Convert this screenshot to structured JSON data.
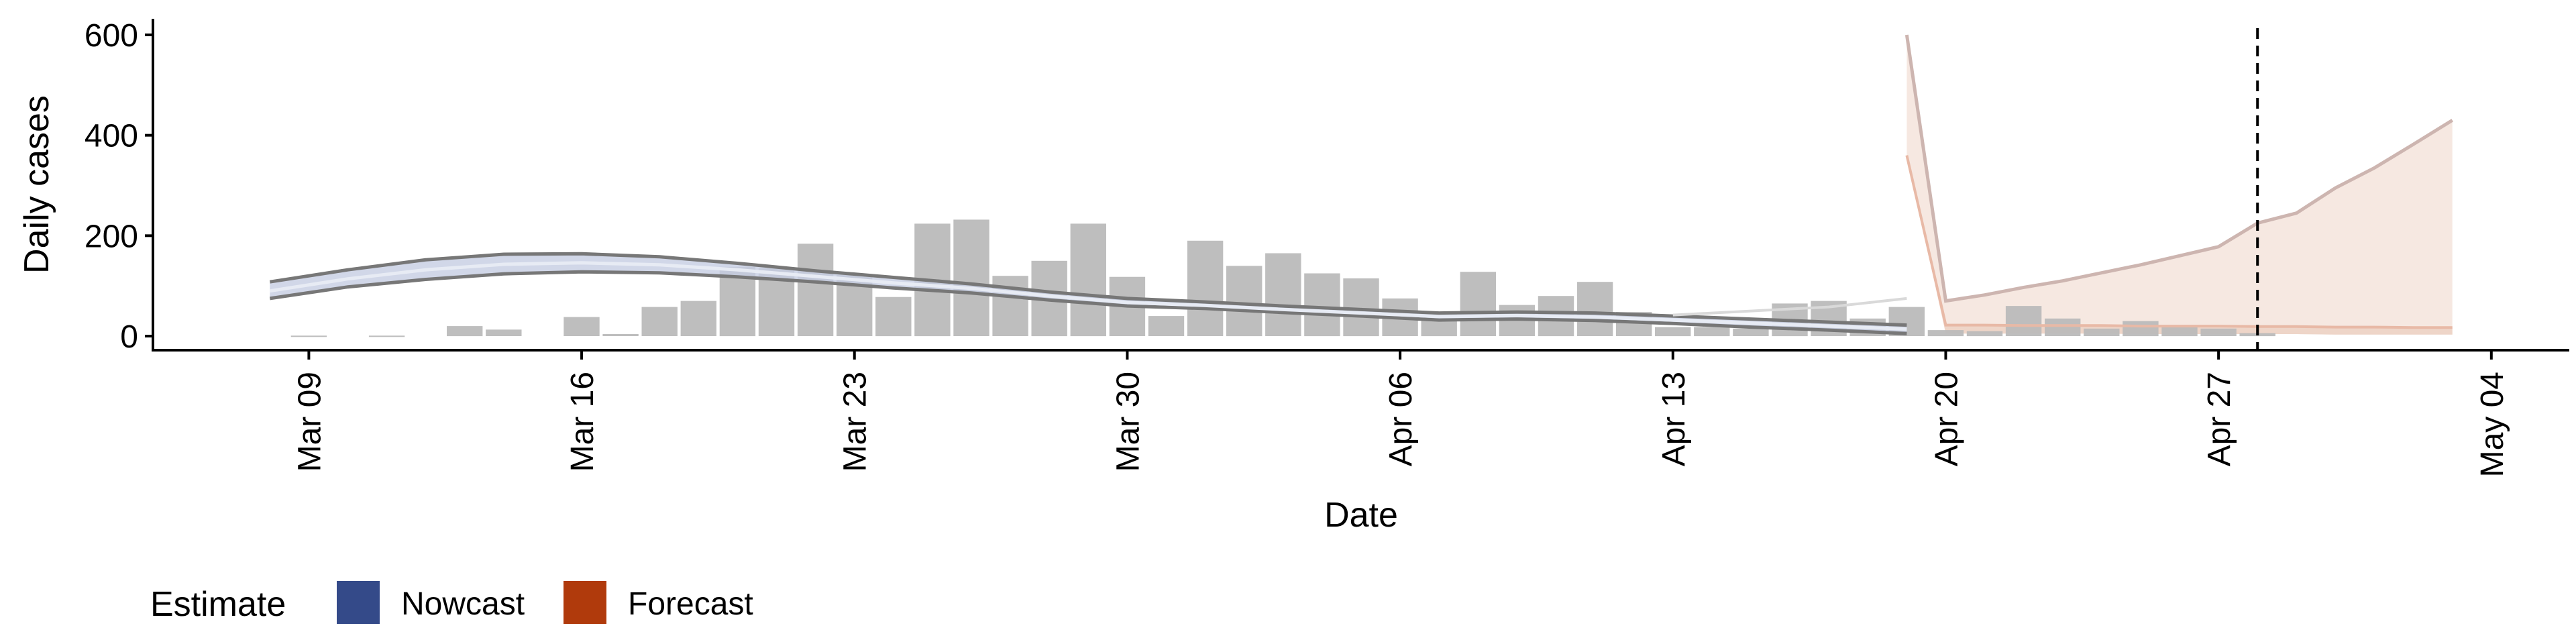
{
  "chart_data": {
    "type": "bar",
    "title": "",
    "xlabel": "Date",
    "ylabel": "Daily cases",
    "ylim": [
      -28,
      632
    ],
    "yticks": [
      0,
      200,
      400,
      600
    ],
    "x_tick_labels": [
      "Mar 09",
      "Mar 16",
      "Mar 23",
      "Mar 30",
      "Apr 06",
      "Apr 13",
      "Apr 20",
      "Apr 27",
      "May 04"
    ],
    "x_tick_dates": [
      "2020-03-09",
      "2020-03-16",
      "2020-03-23",
      "2020-03-30",
      "2020-04-06",
      "2020-04-13",
      "2020-04-20",
      "2020-04-27",
      "2020-05-04"
    ],
    "x_range": [
      "2020-03-05",
      "2020-05-06"
    ],
    "reference_date": "2020-04-28",
    "grid": false,
    "legend_position": "bottom-left",
    "legend": {
      "title": "Estimate",
      "items": [
        {
          "label": "Nowcast",
          "color": "#344a89"
        },
        {
          "label": "Forecast",
          "color": "#b03a0c"
        }
      ]
    },
    "colors": {
      "bars": "#bbbbbb",
      "nowcast_band": "#c5cde2",
      "nowcast_line": "#777777",
      "forecast_band": "#f5e4dc",
      "forecast_line": "#cdb5b0",
      "faint_line": "#d9d9d9"
    },
    "bars": {
      "dates": [
        "2020-03-09",
        "2020-03-11",
        "2020-03-13",
        "2020-03-14",
        "2020-03-16",
        "2020-03-17",
        "2020-03-18",
        "2020-03-19",
        "2020-03-20",
        "2020-03-21",
        "2020-03-22",
        "2020-03-23",
        "2020-03-24",
        "2020-03-25",
        "2020-03-26",
        "2020-03-27",
        "2020-03-28",
        "2020-03-29",
        "2020-03-30",
        "2020-03-31",
        "2020-04-01",
        "2020-04-02",
        "2020-04-03",
        "2020-04-04",
        "2020-04-05",
        "2020-04-06",
        "2020-04-07",
        "2020-04-08",
        "2020-04-09",
        "2020-04-10",
        "2020-04-11",
        "2020-04-12",
        "2020-04-13",
        "2020-04-14",
        "2020-04-15",
        "2020-04-16",
        "2020-04-17",
        "2020-04-18",
        "2020-04-19",
        "2020-04-20",
        "2020-04-21",
        "2020-04-22",
        "2020-04-23",
        "2020-04-24",
        "2020-04-25",
        "2020-04-26",
        "2020-04-27",
        "2020-04-28"
      ],
      "values": [
        1,
        1,
        20,
        13,
        38,
        4,
        58,
        70,
        138,
        135,
        184,
        122,
        78,
        224,
        232,
        120,
        150,
        224,
        118,
        40,
        190,
        140,
        165,
        125,
        115,
        75,
        45,
        128,
        62,
        80,
        108,
        48,
        18,
        18,
        15,
        65,
        70,
        35,
        58,
        12,
        10,
        60,
        35,
        15,
        30,
        18,
        15,
        6
      ]
    },
    "nowcast": {
      "dates": [
        "2020-03-08",
        "2020-03-10",
        "2020-03-12",
        "2020-03-14",
        "2020-03-16",
        "2020-03-18",
        "2020-03-20",
        "2020-03-22",
        "2020-03-24",
        "2020-03-26",
        "2020-03-28",
        "2020-03-30",
        "2020-04-01",
        "2020-04-03",
        "2020-04-05",
        "2020-04-07",
        "2020-04-09",
        "2020-04-11",
        "2020-04-13",
        "2020-04-15",
        "2020-04-17",
        "2020-04-19"
      ],
      "upper": [
        108,
        132,
        152,
        163,
        164,
        158,
        145,
        130,
        117,
        104,
        88,
        75,
        68,
        60,
        53,
        46,
        48,
        46,
        40,
        34,
        28,
        22
      ],
      "lower": [
        75,
        98,
        113,
        124,
        128,
        126,
        118,
        108,
        96,
        86,
        72,
        60,
        55,
        47,
        40,
        32,
        34,
        31,
        25,
        18,
        12,
        5
      ],
      "median": [
        90,
        114,
        132,
        143,
        146,
        142,
        132,
        119,
        106,
        95,
        80,
        67,
        61,
        53,
        46,
        39,
        41,
        38,
        32,
        26,
        20,
        14
      ]
    },
    "nowcast_faint_tail": {
      "dates": [
        "2020-04-13",
        "2020-04-15",
        "2020-04-17",
        "2020-04-19"
      ],
      "values": [
        42,
        50,
        58,
        75
      ]
    },
    "forecast": {
      "dates": [
        "2020-04-19",
        "2020-04-20",
        "2020-04-21",
        "2020-04-22",
        "2020-04-23",
        "2020-04-24",
        "2020-04-25",
        "2020-04-26",
        "2020-04-27",
        "2020-04-28",
        "2020-04-29",
        "2020-04-30",
        "2020-05-01",
        "2020-05-02",
        "2020-05-03"
      ],
      "upper": [
        600,
        70,
        82,
        97,
        110,
        126,
        142,
        160,
        178,
        225,
        245,
        295,
        335,
        382,
        430
      ],
      "lower": [
        360,
        5,
        5,
        5,
        5,
        5,
        4,
        4,
        4,
        4,
        4,
        3,
        3,
        3,
        3
      ],
      "median": [
        360,
        22,
        22,
        21,
        21,
        21,
        20,
        20,
        20,
        19,
        19,
        18,
        18,
        17,
        17
      ]
    }
  }
}
